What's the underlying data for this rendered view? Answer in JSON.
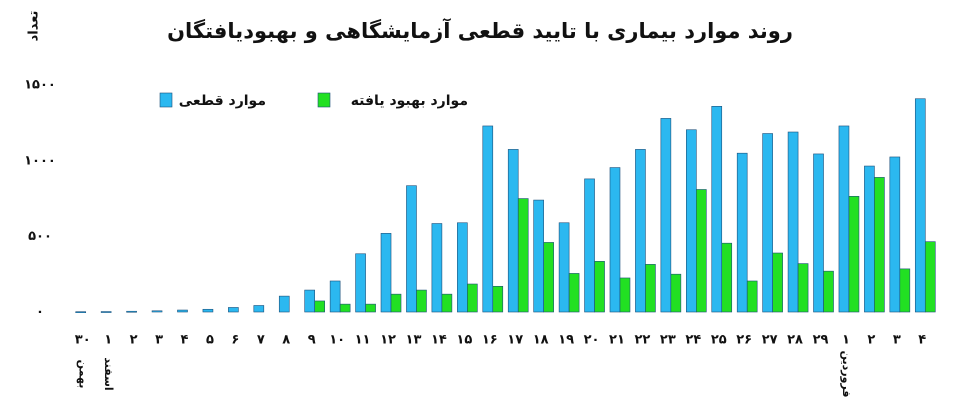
{
  "chart_data": {
    "type": "bar",
    "title": "روند موارد بیماری با تایید قطعی آزمایشگاهی و بهبودیافتگان",
    "y_label": "تعداد",
    "categories": [
      "۳۰",
      "۱",
      "۲",
      "۳",
      "۴",
      "۵",
      "۶",
      "۷",
      "۸",
      "۹",
      "۱۰",
      "۱۱",
      "۱۲",
      "۱۳",
      "۱۴",
      "۱۵",
      "۱۶",
      "۱۷",
      "۱۸",
      "۱۹",
      "۲۰",
      "۲۱",
      "۲۲",
      "۲۳",
      "۲۴",
      "۲۵",
      "۲۶",
      "۲۷",
      "۲۸",
      "۲۹",
      "۱",
      "۲",
      "۳",
      "۴"
    ],
    "sublabels": [
      "بهمن",
      "اسفند",
      null,
      null,
      null,
      null,
      null,
      null,
      null,
      null,
      null,
      null,
      null,
      null,
      null,
      null,
      null,
      null,
      null,
      null,
      null,
      null,
      null,
      null,
      null,
      null,
      null,
      null,
      null,
      null,
      "فروردین",
      null,
      null,
      null
    ],
    "series": [
      {
        "name": "موارد قطعی",
        "color": "#2bb8f0",
        "values": [
          2,
          3,
          5,
          8,
          13,
          18,
          30,
          43,
          105,
          145,
          205,
          385,
          520,
          835,
          585,
          590,
          1230,
          1075,
          740,
          590,
          880,
          955,
          1075,
          1280,
          1205,
          1360,
          1050,
          1180,
          1190,
          1045,
          1230,
          965,
          1025,
          1410
        ]
      },
      {
        "name": "موارد بهبود یافته",
        "color": "#22e022",
        "values": [
          null,
          null,
          null,
          null,
          null,
          null,
          null,
          null,
          null,
          73,
          52,
          52,
          118,
          145,
          118,
          185,
          170,
          750,
          460,
          255,
          335,
          225,
          315,
          250,
          810,
          455,
          205,
          390,
          320,
          270,
          765,
          890,
          285,
          465
        ]
      }
    ],
    "ylim": [
      0,
      1600
    ],
    "yticks": [
      {
        "value": 0,
        "label": "۰"
      },
      {
        "value": 500,
        "label": "۵۰۰"
      },
      {
        "value": 1000,
        "label": "۱۰۰۰"
      },
      {
        "value": 1500,
        "label": "۱۵۰۰"
      }
    ],
    "grid": false,
    "legend": "top-left"
  }
}
